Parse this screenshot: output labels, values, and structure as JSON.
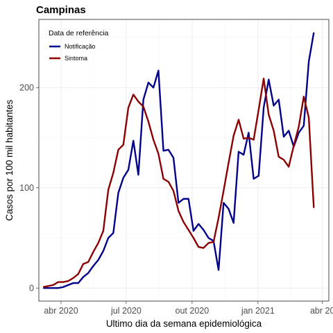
{
  "chart_data": {
    "type": "line",
    "title": "Campinas",
    "xlabel": "Ultimo dia da semana epidemiológica",
    "ylabel": "Casos por 100 mil habitantes",
    "x_ticks": [
      "2020-04-01",
      "2020-07-01",
      "2020-10-01",
      "2021-01-01",
      "2021-04-01"
    ],
    "x_tick_labels": [
      "abr 2020",
      "jul 2020",
      "out 2020",
      "jan 2021",
      "abr 20"
    ],
    "xlim": [
      "2020-03-01",
      "2021-04-10"
    ],
    "y_ticks": [
      0,
      100,
      200
    ],
    "y_tick_labels": [
      "0",
      "100",
      "200"
    ],
    "ylim": [
      -13,
      268
    ],
    "grid": true,
    "legend": {
      "title": "Data de referência",
      "position": "top-left"
    },
    "x": [
      "2020-03-07",
      "2020-03-14",
      "2020-03-21",
      "2020-03-28",
      "2020-04-04",
      "2020-04-11",
      "2020-04-18",
      "2020-04-25",
      "2020-05-02",
      "2020-05-09",
      "2020-05-16",
      "2020-05-23",
      "2020-05-30",
      "2020-06-06",
      "2020-06-13",
      "2020-06-20",
      "2020-06-27",
      "2020-07-04",
      "2020-07-11",
      "2020-07-18",
      "2020-07-25",
      "2020-08-01",
      "2020-08-08",
      "2020-08-15",
      "2020-08-22",
      "2020-08-29",
      "2020-09-05",
      "2020-09-12",
      "2020-09-19",
      "2020-09-26",
      "2020-10-03",
      "2020-10-10",
      "2020-10-17",
      "2020-10-24",
      "2020-10-31",
      "2020-11-07",
      "2020-11-14",
      "2020-11-21",
      "2020-11-28",
      "2020-12-05",
      "2020-12-12",
      "2020-12-19",
      "2020-12-26",
      "2021-01-02",
      "2021-01-09",
      "2021-01-16",
      "2021-01-23",
      "2021-01-30",
      "2021-02-06",
      "2021-02-13",
      "2021-02-20",
      "2021-02-27",
      "2021-03-06",
      "2021-03-13",
      "2021-03-20",
      "2021-03-27",
      "2021-04-03"
    ],
    "series": [
      {
        "name": "Notificação",
        "color": "#00008B",
        "values": [
          0,
          0,
          0,
          0,
          1,
          3,
          5,
          5,
          11,
          15,
          22,
          28,
          37,
          50,
          55,
          95,
          110,
          118,
          147,
          113,
          188,
          205,
          200,
          217,
          137,
          138,
          130,
          85,
          89,
          89,
          57,
          64,
          58,
          50,
          47,
          18,
          85,
          79,
          65,
          136,
          133,
          155,
          109,
          112,
          180,
          208,
          182,
          188,
          151,
          157,
          141,
          155,
          162,
          226,
          255,
          null,
          null
        ]
      },
      {
        "name": "Sintoma",
        "color": "#8B0000",
        "values": [
          1,
          2,
          3,
          6,
          6,
          7,
          10,
          14,
          24,
          26,
          36,
          45,
          57,
          98,
          115,
          138,
          143,
          180,
          193,
          186,
          181,
          166,
          148,
          134,
          109,
          106,
          97,
          77,
          66,
          58,
          50,
          41,
          40,
          45,
          46,
          70,
          97,
          125,
          152,
          168,
          149,
          150,
          148,
          178,
          209,
          173,
          157,
          131,
          128,
          121,
          142,
          161,
          191,
          170,
          80,
          null,
          null
        ]
      }
    ]
  }
}
